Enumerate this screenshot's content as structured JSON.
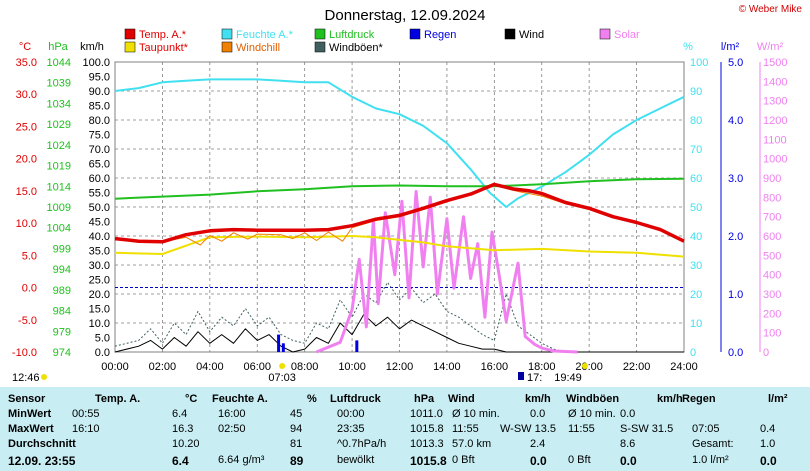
{
  "header": {
    "title": "Donnerstag, 12.09.2024",
    "copyright": "© Weber Mike"
  },
  "legend": [
    {
      "label": "Temp. A.*",
      "color": "#e00000"
    },
    {
      "label": "Feuchte A.*",
      "color": "#40e0f0"
    },
    {
      "label": "Luftdruck",
      "color": "#20c020"
    },
    {
      "label": "Regen",
      "color": "#0000e0"
    },
    {
      "label": "Wind",
      "color": "#000000"
    },
    {
      "label": "Solar",
      "color": "#f080f0"
    },
    {
      "label": "Taupunkt*",
      "color": "#f0e000"
    },
    {
      "label": "Windchill",
      "color": "#f08000"
    },
    {
      "label": "Windböen*",
      "color": "#406060"
    }
  ],
  "axis_units": {
    "temp": "°C",
    "hpa": "hPa",
    "kmh": "km/h",
    "hum": "%",
    "rain": "l/m²",
    "solar": "W/m²"
  },
  "sun": {
    "sunrise": "07:03",
    "sunset": "19:49",
    "left_time": "12:46",
    "right_time": "17:"
  },
  "chart_data": {
    "type": "line",
    "x_unit": "hours",
    "x_ticks": [
      "00:00",
      "02:00",
      "04:00",
      "06:00",
      "08:00",
      "10:00",
      "12:00",
      "14:00",
      "16:00",
      "18:00",
      "20:00",
      "22:00",
      "24:00"
    ],
    "axes": {
      "temp": {
        "ticks": [
          "35.0",
          "30.0",
          "25.0",
          "20.0",
          "15.0",
          "10.0",
          "5.0",
          "0.0",
          "-5.0",
          "-10.0"
        ],
        "range": [
          -10,
          35
        ]
      },
      "hpa": {
        "ticks": [
          "1044",
          "1039",
          "1034",
          "1029",
          "1024",
          "1019",
          "1014",
          "1009",
          "1004",
          "999",
          "994",
          "989",
          "984",
          "979",
          "974"
        ],
        "range": [
          974,
          1044
        ]
      },
      "kmh": {
        "ticks": [
          "100.0",
          "95.0",
          "90.0",
          "85.0",
          "80.0",
          "75.0",
          "70.0",
          "65.0",
          "60.0",
          "55.0",
          "50.0",
          "45.0",
          "40.0",
          "35.0",
          "30.0",
          "25.0",
          "20.0",
          "15.0",
          "10.0",
          "5.0",
          "0.0"
        ],
        "range": [
          0,
          100
        ]
      },
      "hum": {
        "ticks": [
          "100",
          "90",
          "80",
          "70",
          "60",
          "50",
          "40",
          "30",
          "20",
          "10",
          "0"
        ],
        "range": [
          0,
          100
        ]
      },
      "rain": {
        "ticks": [
          "5.0",
          "4.0",
          "3.0",
          "2.0",
          "1.0",
          "0.0"
        ],
        "range": [
          0,
          5
        ]
      },
      "solar": {
        "ticks": [
          "1500",
          "1400",
          "1300",
          "1200",
          "1100",
          "1000",
          "900",
          "800",
          "700",
          "600",
          "500",
          "400",
          "300",
          "200",
          "100",
          "0"
        ],
        "range": [
          0,
          1500
        ]
      }
    },
    "series": [
      {
        "name": "Temp. A.*",
        "axis": "temp",
        "color": "#e00000",
        "width": 3.5,
        "points": [
          [
            0,
            7.6
          ],
          [
            1,
            7.2
          ],
          [
            2,
            7.1
          ],
          [
            3,
            8.2
          ],
          [
            4,
            8.8
          ],
          [
            5,
            9.0
          ],
          [
            6,
            8.9
          ],
          [
            7,
            8.9
          ],
          [
            8,
            8.9
          ],
          [
            9,
            9.0
          ],
          [
            10,
            9.6
          ],
          [
            11,
            10.6
          ],
          [
            12,
            11.2
          ],
          [
            13,
            12.3
          ],
          [
            14,
            13.5
          ],
          [
            15,
            14.5
          ],
          [
            16,
            16.0
          ],
          [
            16.8,
            15.3
          ],
          [
            17.5,
            15.0
          ],
          [
            18,
            14.6
          ],
          [
            19,
            13.2
          ],
          [
            20,
            12.3
          ],
          [
            21,
            11.0
          ],
          [
            22,
            10.1
          ],
          [
            23,
            9.0
          ],
          [
            24,
            7.2
          ]
        ]
      },
      {
        "name": "Taupunkt*",
        "axis": "temp",
        "color": "#f0e000",
        "width": 2,
        "points": [
          [
            0,
            5.4
          ],
          [
            2,
            5.2
          ],
          [
            4,
            7.8
          ],
          [
            6,
            7.9
          ],
          [
            8,
            7.8
          ],
          [
            10,
            8.0
          ],
          [
            11,
            7.8
          ],
          [
            12,
            7.4
          ],
          [
            13,
            7.0
          ],
          [
            14,
            6.4
          ],
          [
            16,
            5.8
          ],
          [
            18,
            6.0
          ],
          [
            20,
            5.6
          ],
          [
            22,
            5.4
          ],
          [
            24,
            4.8
          ]
        ]
      },
      {
        "name": "Windchill",
        "axis": "temp",
        "color": "#f08000",
        "width": 1,
        "points": [
          [
            2,
            7.1
          ],
          [
            3,
            7.8
          ],
          [
            3.6,
            6.6
          ],
          [
            4,
            8.1
          ],
          [
            4.5,
            7.2
          ],
          [
            5,
            8.5
          ],
          [
            5.6,
            7.5
          ],
          [
            6,
            8.3
          ],
          [
            7,
            8.2
          ],
          [
            7.5,
            7.6
          ],
          [
            8,
            8.5
          ],
          [
            8.5,
            7.3
          ],
          [
            9,
            8.6
          ],
          [
            9.6,
            7.2
          ],
          [
            10,
            9.3
          ],
          [
            11,
            10.4
          ],
          [
            12,
            11.0
          ],
          [
            13,
            12.1
          ],
          [
            14,
            13.3
          ],
          [
            15,
            14.4
          ],
          [
            16,
            15.9
          ],
          [
            17,
            14.9
          ],
          [
            18,
            14.2
          ],
          [
            19,
            13.0
          ],
          [
            20,
            12.1
          ]
        ]
      },
      {
        "name": "Feuchte A.*",
        "axis": "hum",
        "color": "#40e0f0",
        "width": 2,
        "points": [
          [
            0,
            90
          ],
          [
            1,
            91
          ],
          [
            2,
            93
          ],
          [
            3,
            93.5
          ],
          [
            4,
            94
          ],
          [
            5,
            94
          ],
          [
            6,
            94
          ],
          [
            7,
            93.5
          ],
          [
            8,
            93
          ],
          [
            9,
            93
          ],
          [
            10,
            88
          ],
          [
            11,
            84
          ],
          [
            12,
            82
          ],
          [
            13,
            78
          ],
          [
            14,
            72
          ],
          [
            15,
            63
          ],
          [
            15.8,
            55
          ],
          [
            16.5,
            50
          ],
          [
            17,
            53
          ],
          [
            18,
            57
          ],
          [
            19,
            62
          ],
          [
            20,
            68
          ],
          [
            21,
            75
          ],
          [
            22,
            80
          ],
          [
            23,
            84
          ],
          [
            24,
            88
          ]
        ]
      },
      {
        "name": "Luftdruck",
        "axis": "hpa",
        "color": "#20c020",
        "width": 2,
        "points": [
          [
            0,
            1011.0
          ],
          [
            2,
            1011.5
          ],
          [
            4,
            1012.0
          ],
          [
            6,
            1012.8
          ],
          [
            8,
            1013.3
          ],
          [
            10,
            1014.0
          ],
          [
            12,
            1014.2
          ],
          [
            14,
            1014.0
          ],
          [
            16,
            1014.0
          ],
          [
            18,
            1014.5
          ],
          [
            20,
            1015.2
          ],
          [
            22,
            1015.7
          ],
          [
            24,
            1015.8
          ]
        ]
      },
      {
        "name": "Wind",
        "axis": "kmh",
        "color": "#000000",
        "width": 1,
        "points": [
          [
            0,
            0
          ],
          [
            1,
            2
          ],
          [
            1.5,
            4
          ],
          [
            2,
            1
          ],
          [
            2.5,
            5
          ],
          [
            3,
            2
          ],
          [
            3.5,
            7
          ],
          [
            4,
            3
          ],
          [
            4.5,
            6
          ],
          [
            5,
            3
          ],
          [
            5.5,
            8
          ],
          [
            6,
            4
          ],
          [
            6.5,
            6
          ],
          [
            7,
            2
          ],
          [
            7.5,
            0
          ],
          [
            8,
            1
          ],
          [
            8.5,
            5
          ],
          [
            9,
            3
          ],
          [
            9.5,
            10
          ],
          [
            10,
            6
          ],
          [
            10.5,
            13
          ],
          [
            11,
            9
          ],
          [
            11.5,
            12
          ],
          [
            12,
            8
          ],
          [
            12.5,
            11
          ],
          [
            13,
            9
          ],
          [
            13.5,
            7
          ],
          [
            14,
            5
          ],
          [
            14.5,
            3
          ],
          [
            15,
            2
          ],
          [
            15.5,
            1
          ],
          [
            16,
            1
          ],
          [
            16.5,
            0
          ],
          [
            17,
            0
          ],
          [
            18,
            0
          ],
          [
            20,
            0
          ],
          [
            24,
            0
          ]
        ]
      },
      {
        "name": "Windböen*",
        "axis": "kmh",
        "color": "#406060",
        "width": 1,
        "dash": "2,2",
        "points": [
          [
            0,
            2
          ],
          [
            1,
            4
          ],
          [
            1.5,
            8
          ],
          [
            2,
            3
          ],
          [
            2.5,
            10
          ],
          [
            3,
            6
          ],
          [
            3.5,
            14
          ],
          [
            4,
            7
          ],
          [
            4.5,
            12
          ],
          [
            5,
            9
          ],
          [
            5.5,
            15
          ],
          [
            6,
            9
          ],
          [
            6.5,
            12
          ],
          [
            7,
            6
          ],
          [
            7.5,
            4
          ],
          [
            8,
            3
          ],
          [
            8.5,
            10
          ],
          [
            9,
            8
          ],
          [
            9.5,
            18
          ],
          [
            10,
            12
          ],
          [
            10.5,
            20
          ],
          [
            11,
            17
          ],
          [
            11.5,
            24
          ],
          [
            12,
            18
          ],
          [
            12.5,
            22
          ],
          [
            13,
            17
          ],
          [
            13.5,
            20
          ],
          [
            14,
            14
          ],
          [
            14.5,
            12
          ],
          [
            15,
            9
          ],
          [
            15.5,
            6
          ],
          [
            16,
            4
          ],
          [
            16.5,
            20
          ],
          [
            17,
            9
          ],
          [
            17.5,
            6
          ],
          [
            18,
            3
          ],
          [
            18.5,
            1
          ],
          [
            19,
            0
          ],
          [
            24,
            0
          ]
        ]
      },
      {
        "name": "Solar",
        "axis": "solar",
        "color": "#f080f0",
        "width": 3,
        "points": [
          [
            8.5,
            0
          ],
          [
            9.5,
            50
          ],
          [
            10,
            220
          ],
          [
            10.3,
            480
          ],
          [
            10.6,
            130
          ],
          [
            10.9,
            680
          ],
          [
            11.1,
            250
          ],
          [
            11.4,
            720
          ],
          [
            11.8,
            400
          ],
          [
            12.1,
            780
          ],
          [
            12.4,
            280
          ],
          [
            12.7,
            830
          ],
          [
            13.0,
            440
          ],
          [
            13.3,
            800
          ],
          [
            13.6,
            300
          ],
          [
            14.0,
            690
          ],
          [
            14.3,
            330
          ],
          [
            14.7,
            700
          ],
          [
            15.0,
            380
          ],
          [
            15.3,
            560
          ],
          [
            15.6,
            180
          ],
          [
            15.9,
            620
          ],
          [
            16.2,
            400
          ],
          [
            16.5,
            160
          ],
          [
            17.0,
            460
          ],
          [
            17.3,
            80
          ],
          [
            17.7,
            40
          ],
          [
            18,
            20
          ],
          [
            18.5,
            5
          ],
          [
            19.5,
            0
          ]
        ]
      },
      {
        "name": "Regen",
        "axis": "rain",
        "color": "#0000e0",
        "width": 2.5,
        "bars": true,
        "points": [
          [
            6.9,
            0.3
          ],
          [
            7.1,
            0.15
          ],
          [
            10.2,
            0.2
          ]
        ]
      }
    ]
  },
  "table": {
    "headers": [
      "Sensor",
      "Temp. A.",
      "°C",
      "Feuchte A.",
      "%",
      "Luftdruck",
      "hPa",
      "Wind",
      "km/h",
      "Windböen",
      "km/h",
      "Regen",
      "l/m²"
    ],
    "rows": [
      {
        "label": "MinWert",
        "cells": [
          "00:55",
          "6.4",
          "16:00",
          "45",
          "00:00",
          "1011.0",
          "Ø 10 min.",
          "",
          "0.0",
          "Ø 10 min.",
          "0.0",
          "",
          ""
        ]
      },
      {
        "label": "MaxWert",
        "cells": [
          "16:10",
          "16.3",
          "02:50",
          "94",
          "23:35",
          "1015.8",
          "11:55",
          "W-SW 13.5",
          "",
          "11:55",
          "S-SW 31.5",
          "07:05",
          "0.4"
        ]
      },
      {
        "label": "Durchschnitt",
        "cells": [
          "",
          "10.20",
          "",
          "81",
          "^0.7hPa/h",
          "1013.3",
          "57.0 km",
          "",
          "2.4",
          "",
          "8.6",
          "Gesamt:",
          "1.0"
        ]
      },
      {
        "label": "12.09. 23:55",
        "cells": [
          "",
          "6.4",
          "6.64 g/m³",
          "89",
          "bewölkt",
          "1015.8",
          "0 Bft",
          "",
          "0.0",
          "0 Bft",
          "0.0",
          "1.0 l/m²",
          "0.0"
        ]
      }
    ]
  }
}
